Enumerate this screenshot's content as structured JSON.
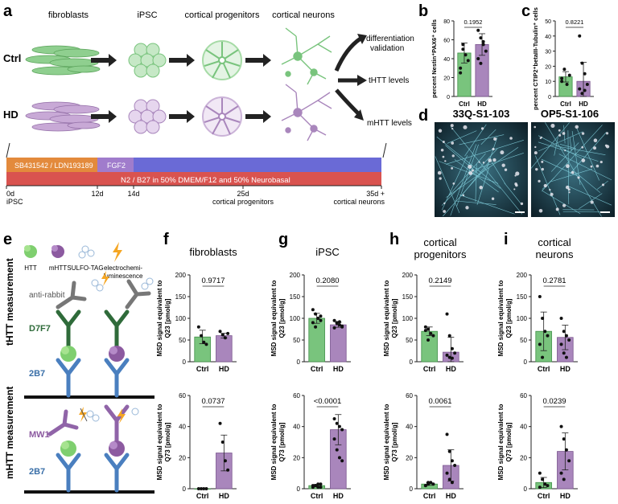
{
  "panel_letters": {
    "a": "a",
    "b": "b",
    "c": "c",
    "d": "d",
    "e": "e",
    "f": "f",
    "g": "g",
    "h": "h",
    "i": "i"
  },
  "panel_a": {
    "stages": [
      "fibroblasts",
      "iPSC",
      "cortical progenitors",
      "cortical neurons"
    ],
    "rows": [
      "Ctrl",
      "HD"
    ],
    "outputs": [
      "differentiation\nvalidation",
      "tHTT levels",
      "mHTT levels"
    ],
    "timeline": {
      "bar1": "SB431542 / LDN193189",
      "bar2": "FGF2",
      "bar3": "N2 / B27 in 50% DMEM/F12 and 50% Neurobasal",
      "ticks": [
        {
          "day": "0d",
          "label": "iPSC"
        },
        {
          "day": "12d",
          "label": ""
        },
        {
          "day": "14d",
          "label": ""
        },
        {
          "day": "25d",
          "label": "cortical progenitors"
        },
        {
          "day": "35d +",
          "label": "cortical neurons"
        }
      ]
    }
  },
  "panel_d": {
    "left_title": "33Q-S1-103",
    "right_title": "OP5-S1-106"
  },
  "panel_e": {
    "legend": [
      "HTT",
      "mHTT",
      "SULFO-TAG",
      "electrochemi-\nluminescence"
    ],
    "top_label": "tHTT measurement",
    "bottom_label": "mHTT measurement",
    "anti_rabbit": "anti-rabbit",
    "d7f7": "D7F7",
    "mw1": "MW1",
    "b2b7_top": "2B7",
    "b2b7_bottom": "2B7"
  },
  "colors": {
    "ctrl": "#79c47d",
    "hd": "#a986bc",
    "ctrl_dark": "#3f8f46",
    "hd_dark": "#7a558e"
  },
  "chart_data": [
    {
      "id": "b",
      "type": "bar",
      "categories": [
        "Ctrl",
        "HD"
      ],
      "values": [
        46,
        55
      ],
      "points": [
        [
          30,
          50,
          44,
          38,
          25,
          55
        ],
        [
          70,
          62,
          55,
          48,
          40,
          35,
          58
        ]
      ],
      "ylabel": "percent Nestin⁺PAX6⁺ cells",
      "yticks": [
        0,
        20,
        40,
        60,
        80
      ],
      "ylim": [
        0,
        80
      ],
      "pvalue": "0.1952"
    },
    {
      "id": "c",
      "type": "bar",
      "categories": [
        "Ctrl",
        "HD"
      ],
      "values": [
        13,
        10
      ],
      "points": [
        [
          12,
          18,
          8,
          14,
          10
        ],
        [
          40,
          22,
          15,
          8,
          5,
          2,
          4
        ]
      ],
      "ylabel": "percent CTIP2⁺betaIII-Tubulin⁺ cells",
      "yticks": [
        0,
        10,
        20,
        30,
        40,
        50
      ],
      "ylim": [
        0,
        50
      ],
      "pvalue": "0.8221"
    },
    {
      "id": "f_top",
      "type": "bar",
      "title": "fibroblasts",
      "categories": [
        "Ctrl",
        "HD"
      ],
      "values": [
        57,
        60
      ],
      "points": [
        [
          80,
          60,
          45,
          40
        ],
        [
          70,
          62,
          55,
          65
        ]
      ],
      "ylabel": "MSD signal equivalent to\nQ23 [pmol/g]",
      "yticks": [
        0,
        50,
        100,
        150,
        200
      ],
      "ylim": [
        0,
        200
      ],
      "pvalue": "0.9717"
    },
    {
      "id": "f_bot",
      "type": "bar",
      "categories": [
        "Ctrl",
        "HD"
      ],
      "values": [
        0,
        23
      ],
      "points": [
        [
          0,
          0,
          0,
          0
        ],
        [
          42,
          30,
          18,
          12
        ]
      ],
      "ylabel": "MSD signal equivalent to\nQ73 [pmol/g]",
      "yticks": [
        0,
        20,
        40,
        60
      ],
      "ylim": [
        0,
        60
      ],
      "pvalue": "0.0737"
    },
    {
      "id": "g_top",
      "type": "bar",
      "title": "iPSC",
      "categories": [
        "Ctrl",
        "HD"
      ],
      "values": [
        100,
        85
      ],
      "points": [
        [
          120,
          110,
          100,
          95,
          90,
          80,
          100,
          105
        ],
        [
          95,
          90,
          85,
          80,
          78,
          88,
          92,
          82
        ]
      ],
      "ylabel": "MSD signal equivalent to\nQ23 [pmol/g]",
      "yticks": [
        0,
        50,
        100,
        150,
        200
      ],
      "ylim": [
        0,
        200
      ],
      "pvalue": "0.2080"
    },
    {
      "id": "g_bot",
      "type": "bar",
      "categories": [
        "Ctrl",
        "HD"
      ],
      "values": [
        2,
        38
      ],
      "points": [
        [
          1,
          2,
          3,
          1,
          2,
          2,
          1,
          3
        ],
        [
          45,
          42,
          40,
          38,
          32,
          25,
          20,
          18
        ]
      ],
      "ylabel": "MSD signal equivalent to\nQ73 [pmol/g]",
      "yticks": [
        0,
        20,
        40,
        60
      ],
      "ylim": [
        0,
        60
      ],
      "pvalue": "<0.0001"
    },
    {
      "id": "h_top",
      "type": "bar",
      "title": "cortical\nprogenitors",
      "categories": [
        "Ctrl",
        "HD"
      ],
      "values": [
        70,
        22
      ],
      "points": [
        [
          80,
          75,
          65,
          60,
          72,
          50
        ],
        [
          110,
          60,
          30,
          20,
          15,
          10,
          8
        ]
      ],
      "ylabel": "MSD signal equivalent to\nQ23 [pmol/g]",
      "yticks": [
        0,
        50,
        100,
        150,
        200
      ],
      "ylim": [
        0,
        200
      ],
      "pvalue": "0.2149"
    },
    {
      "id": "h_bot",
      "type": "bar",
      "categories": [
        "Ctrl",
        "HD"
      ],
      "values": [
        3,
        15
      ],
      "points": [
        [
          2,
          3,
          4,
          3,
          2,
          4
        ],
        [
          35,
          24,
          18,
          15,
          10,
          6,
          4
        ]
      ],
      "ylabel": "MSD signal equivalent to\nQ73 [pmol/g]",
      "yticks": [
        0,
        20,
        40,
        60
      ],
      "ylim": [
        0,
        60
      ],
      "pvalue": "0.0061"
    },
    {
      "id": "i_top",
      "type": "bar",
      "title": "cortical\nneurons",
      "categories": [
        "Ctrl",
        "HD"
      ],
      "values": [
        70,
        56
      ],
      "points": [
        [
          150,
          100,
          70,
          60,
          40,
          10
        ],
        [
          100,
          70,
          60,
          50,
          40,
          20,
          10
        ]
      ],
      "ylabel": "MSD signal equivalent to\nQ23 [pmol/g]",
      "yticks": [
        0,
        50,
        100,
        150,
        200
      ],
      "ylim": [
        0,
        200
      ],
      "pvalue": "0.2781"
    },
    {
      "id": "i_bot",
      "type": "bar",
      "categories": [
        "Ctrl",
        "HD"
      ],
      "values": [
        4,
        24
      ],
      "points": [
        [
          10,
          6,
          3,
          2,
          1
        ],
        [
          40,
          32,
          25,
          18,
          10,
          6
        ]
      ],
      "ylabel": "MSD signal equivalent to\nQ73 [pmol/g]",
      "yticks": [
        0,
        20,
        40,
        60
      ],
      "ylim": [
        0,
        60
      ],
      "pvalue": "0.0239"
    }
  ]
}
